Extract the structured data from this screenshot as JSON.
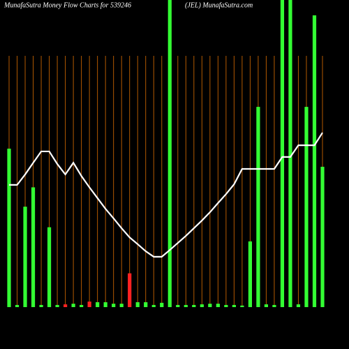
{
  "chart_data": {
    "type": "bar",
    "title": "MunafaSutra  Money Flow  Charts for 539246",
    "subtitle": "(JEL) MunafaSutra.com",
    "categories": [
      null,
      null,
      null,
      null,
      null,
      null,
      null,
      null,
      null,
      null,
      null,
      null,
      null,
      null,
      null,
      null,
      null,
      null,
      null,
      null,
      null,
      null,
      null,
      null,
      null,
      null,
      null,
      null,
      null,
      null,
      null,
      null,
      null,
      null,
      null,
      null,
      null,
      null,
      null,
      null
    ],
    "series": [
      {
        "values": [
          51.6,
          0.7,
          32.7,
          39,
          0.7,
          26,
          0.7,
          0.9,
          1.1,
          0.7,
          1.8,
          1.6,
          1.6,
          1.1,
          1.1,
          11,
          1.6,
          1.6,
          0.7,
          1.4,
          100,
          0.7,
          0.7,
          0.7,
          0.9,
          1.1,
          1.1,
          0.7,
          0.7,
          0.5,
          21.4,
          65.2,
          0.9,
          0.7,
          100,
          100,
          0.9,
          65.2,
          95,
          45.7
        ],
        "colors": [
          "#33ff33",
          "#33ff33",
          "#33ff33",
          "#33ff33",
          "#33ff33",
          "#33ff33",
          "#33ff33",
          "#ff2222",
          "#33ff33",
          "#33ff33",
          "#ff2222",
          "#33ff33",
          "#33ff33",
          "#33ff33",
          "#33ff33",
          "#ff2222",
          "#33ff33",
          "#33ff33",
          "#33ff33",
          "#33ff33",
          "#33ff33",
          "#33ff33",
          "#33ff33",
          "#33ff33",
          "#33ff33",
          "#33ff33",
          "#33ff33",
          "#33ff33",
          "#33ff33",
          "#33ff33",
          "#33ff33",
          "#33ff33",
          "#33ff33",
          "#33ff33",
          "#33ff33",
          "#33ff33",
          "#33ff33",
          "#33ff33",
          "#33ff33",
          "#33ff33"
        ]
      },
      {
        "type": "line",
        "color": "#ffffff",
        "values": [
          39.8,
          39.8,
          43.2,
          47,
          50.7,
          50.7,
          46.6,
          43.2,
          47,
          42.7,
          39,
          35.5,
          32,
          28.9,
          25.7,
          22.7,
          20.5,
          18.2,
          16.4,
          16.4,
          18.6,
          20.9,
          23.2,
          25.7,
          28.2,
          30.9,
          33.9,
          36.8,
          40,
          45,
          45,
          45,
          45,
          45,
          48.9,
          48.9,
          52.7,
          52.7,
          52.7,
          56.8
        ]
      }
    ],
    "ylim": [
      0,
      100
    ],
    "grid": true,
    "grid_color": "#b35900"
  }
}
